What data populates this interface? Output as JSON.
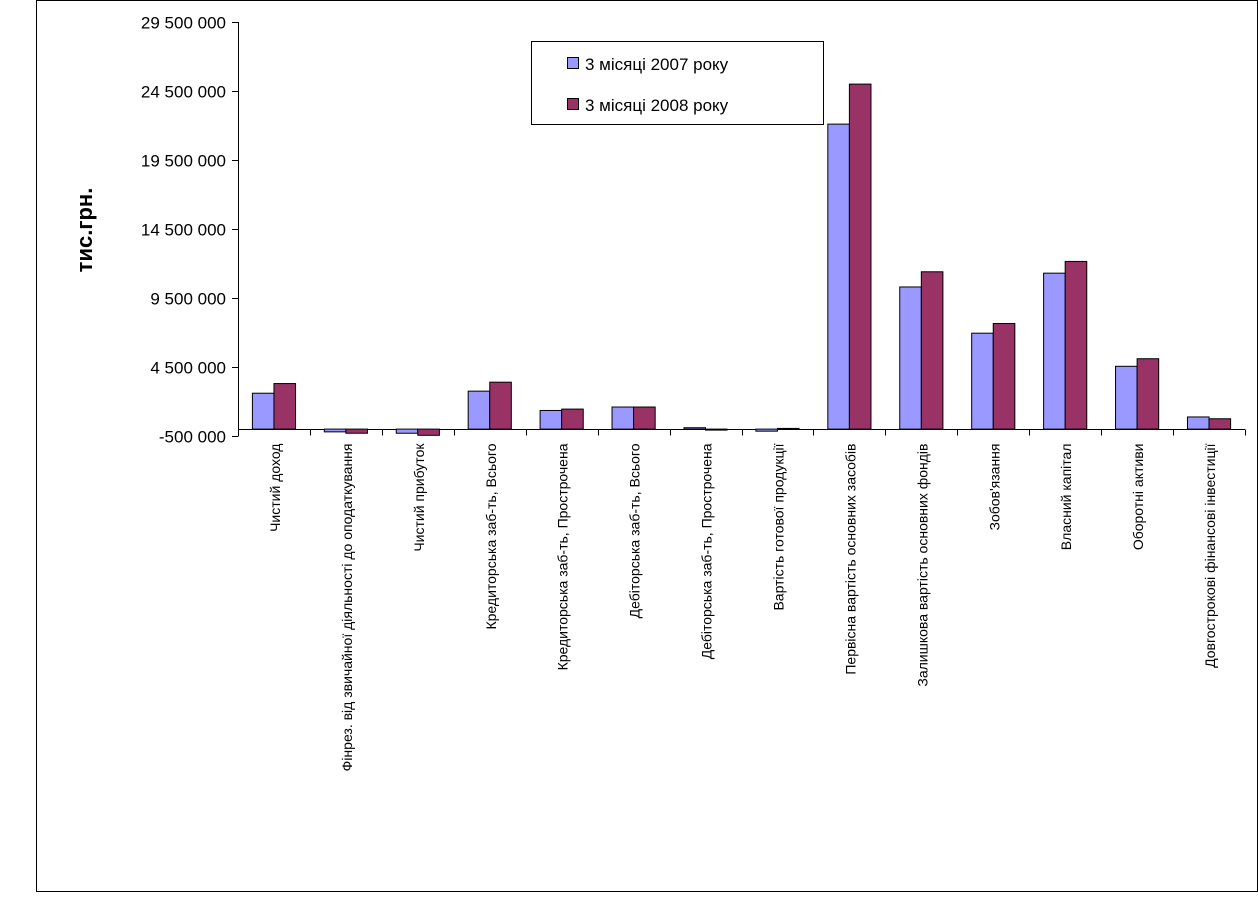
{
  "chart_data": {
    "type": "bar",
    "ylabel": "тис.грн.",
    "ylim": [
      -500000,
      29500000
    ],
    "yticks": [
      -500000,
      4500000,
      9500000,
      14500000,
      19500000,
      24500000,
      29500000
    ],
    "ytick_labels": [
      "-500 000",
      "4 500 000",
      "9 500 000",
      "14 500 000",
      "19 500 000",
      "24 500 000",
      "29 500 000"
    ],
    "grid": false,
    "legend_position": "top-center",
    "categories": [
      "Чистий доход",
      "Фінрез. від звичайної діяльності  до оподаткування",
      "Чистий прибуток",
      "Кредиторська заб-ть,  Всього",
      "Кредиторська заб-ть,  Прострочена",
      "Дебіторська заб-ть,  Всього",
      "Дебіторська заб-ть,  Прострочена",
      "Вартість готової продукції",
      "Первісна вартість основних засобів",
      "Залишкова вартість основних фондів",
      "Зобов'язання",
      "Власний капітал",
      "Оборотні активи",
      "Довгострокові фінансові інвестиції"
    ],
    "series": [
      {
        "name": "3 місяці 2007 року",
        "color": "#9999ff",
        "values": [
          2600000,
          -200000,
          -300000,
          2750000,
          1350000,
          1600000,
          100000,
          -150000,
          22100000,
          10300000,
          6950000,
          11300000,
          4550000,
          880000
        ]
      },
      {
        "name": "3 місяці 2008 року",
        "color": "#993366",
        "values": [
          3300000,
          -300000,
          -450000,
          3400000,
          1450000,
          1600000,
          -50000,
          50000,
          25000000,
          11400000,
          7650000,
          12150000,
          5100000,
          750000
        ]
      }
    ]
  }
}
